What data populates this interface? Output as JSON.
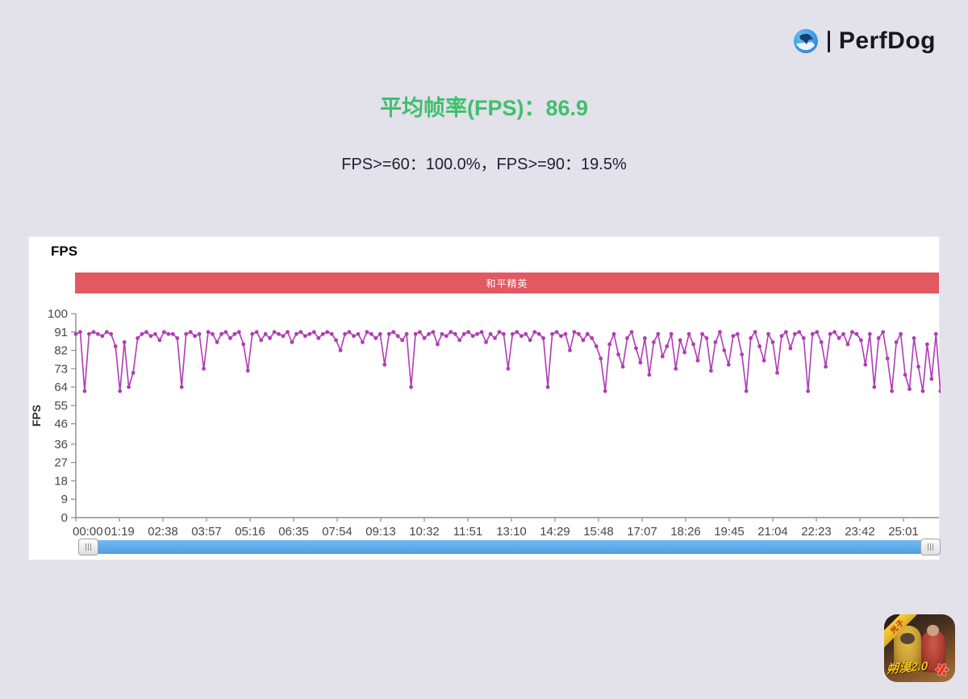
{
  "brand": {
    "name": "PerfDog"
  },
  "headline": {
    "avg_title": "平均帧率(FPS)：86.9",
    "avg_color": "#3ec06c",
    "stats": "FPS>=60：100.0%，FPS>=90：19.5%"
  },
  "panel": {
    "title": "FPS",
    "banner": {
      "label": "和平精英",
      "color": "#e25962"
    }
  },
  "app_icon": {
    "ribbon": "光子",
    "caption": "朔漠2.0"
  },
  "chart_data": {
    "type": "line",
    "title": "FPS",
    "series_name": "和平精英",
    "ylabel": "FPS",
    "ylim": [
      0,
      100
    ],
    "grid": false,
    "legend": "banner-top",
    "y_ticks": [
      0,
      9,
      18,
      27,
      36,
      46,
      55,
      64,
      73,
      82,
      91,
      100
    ],
    "x_tick_labels": [
      "00:00",
      "01:19",
      "02:38",
      "03:57",
      "05:16",
      "06:35",
      "07:54",
      "09:13",
      "10:32",
      "11:51",
      "13:10",
      "14:29",
      "15:48",
      "17:07",
      "18:26",
      "19:45",
      "21:04",
      "22:23",
      "23:42",
      "25:01"
    ],
    "x_tick_interval_s": 79,
    "line_color": "#b03cb5",
    "axis_color": "#8c8c92",
    "label_color": "#47474d",
    "t_step_s": 8,
    "fps_values": [
      90,
      91,
      62,
      90,
      91,
      90,
      89,
      91,
      90,
      84,
      62,
      86,
      64,
      71,
      88,
      90,
      91,
      89,
      90,
      87,
      91,
      90,
      90,
      88,
      64,
      90,
      91,
      89,
      90,
      73,
      91,
      90,
      86,
      90,
      91,
      88,
      90,
      91,
      85,
      72,
      90,
      91,
      87,
      90,
      88,
      91,
      90,
      89,
      91,
      86,
      90,
      91,
      89,
      90,
      91,
      88,
      90,
      91,
      90,
      87,
      82,
      90,
      91,
      89,
      90,
      86,
      91,
      90,
      88,
      90,
      75,
      90,
      91,
      89,
      87,
      90,
      64,
      90,
      91,
      88,
      90,
      91,
      85,
      90,
      89,
      91,
      90,
      87,
      90,
      91,
      89,
      90,
      91,
      86,
      90,
      88,
      91,
      90,
      73,
      90,
      91,
      89,
      90,
      87,
      91,
      90,
      88,
      64,
      90,
      91,
      89,
      90,
      82,
      91,
      90,
      87,
      90,
      88,
      84,
      78,
      62,
      85,
      90,
      80,
      74,
      88,
      91,
      83,
      76,
      88,
      70,
      86,
      90,
      79,
      84,
      90,
      73,
      87,
      81,
      90,
      85,
      77,
      90,
      88,
      72,
      86,
      91,
      82,
      75,
      89,
      90,
      80,
      62,
      88,
      91,
      84,
      77,
      90,
      86,
      71,
      89,
      91,
      83,
      90,
      91,
      88,
      62,
      90,
      91,
      86,
      74,
      90,
      91,
      88,
      90,
      85,
      91,
      90,
      87,
      75,
      90,
      64,
      88,
      91,
      78,
      62,
      86,
      90,
      70,
      63,
      88,
      74,
      62,
      85,
      68,
      90,
      62
    ]
  }
}
